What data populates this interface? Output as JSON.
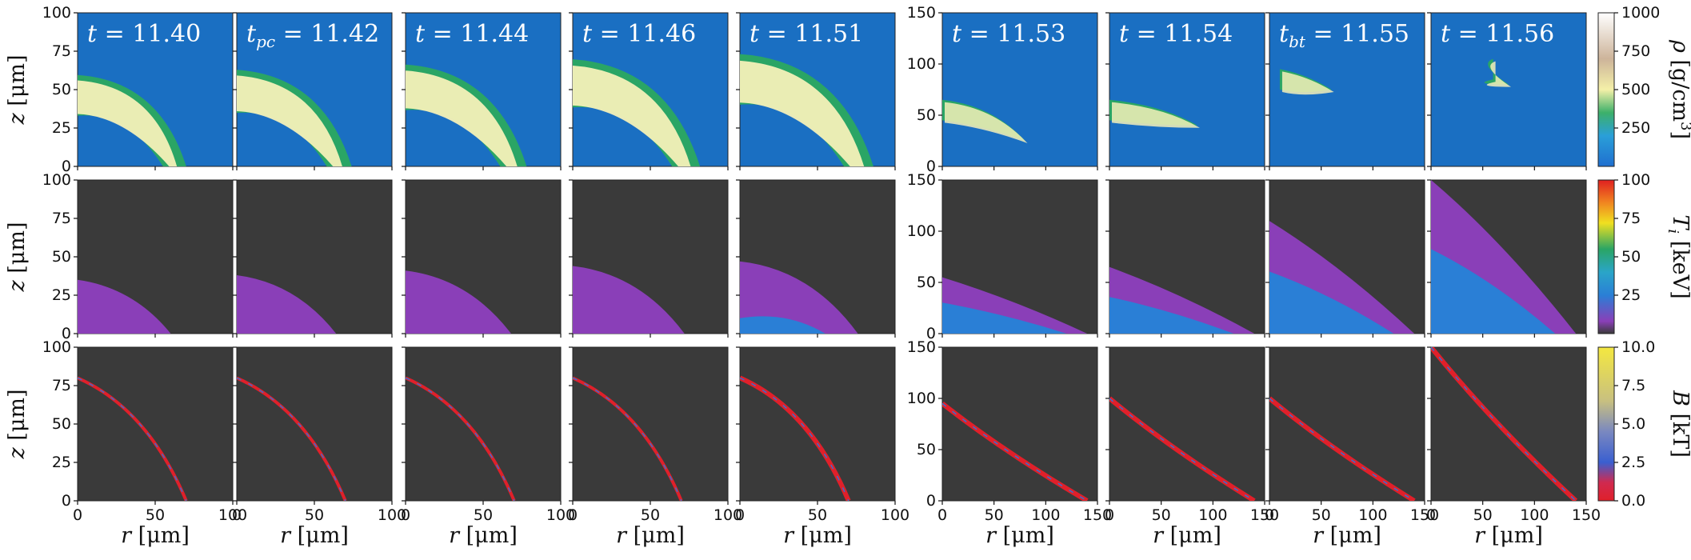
{
  "figure": {
    "time_labels": [
      {
        "prefix": "t",
        "sub": "",
        "value": " = 11.40"
      },
      {
        "prefix": "t",
        "sub": "pc",
        "value": " = 11.42"
      },
      {
        "prefix": "t",
        "sub": "",
        "value": " = 11.44"
      },
      {
        "prefix": "t",
        "sub": "",
        "value": " = 11.46"
      },
      {
        "prefix": "t",
        "sub": "",
        "value": " = 11.51"
      },
      {
        "prefix": "t",
        "sub": "",
        "value": " = 11.53"
      },
      {
        "prefix": "t",
        "sub": "",
        "value": " = 11.54"
      },
      {
        "prefix": "t",
        "sub": "bt",
        "value": " = 11.55"
      },
      {
        "prefix": "t",
        "sub": "",
        "value": " = 11.56"
      }
    ],
    "x_label_var": "r",
    "x_label_unit": " [μm]",
    "y_label_var": "z",
    "y_label_unit": " [μm]",
    "x_ticks_small": [
      "0",
      "50",
      "100"
    ],
    "x_ticks_large": [
      "0",
      "50",
      "100",
      "150"
    ],
    "y_ticks_small": [
      "0",
      "25",
      "50",
      "75",
      "100"
    ],
    "y_ticks_large": [
      "0",
      "50",
      "100",
      "150"
    ],
    "colorbars": [
      {
        "var": "ρ",
        "unit": " [g/cm",
        "sup": "3",
        "close": "]",
        "ticks": [
          "250",
          "500",
          "750",
          "1000"
        ]
      },
      {
        "var": "T",
        "sub": "i",
        "unit": " [keV]",
        "ticks": [
          "25",
          "50",
          "75",
          "100"
        ]
      },
      {
        "var": "B",
        "unit": " [kT]",
        "ticks": [
          "0.0",
          "2.5",
          "5.0",
          "7.5",
          "10.0"
        ]
      }
    ],
    "colors": {
      "density_bg": "#1a6fc2",
      "dark_bg": "#3a3a3a",
      "shell_light": "#f4f0b8",
      "shell_green": "#2aa565",
      "ti_purple": "#8a3fb8",
      "ti_blue": "#2a7fd6",
      "b_red": "#e0202a",
      "b_blue": "#3a6fd0"
    }
  },
  "chart_data": {
    "type": "heatmap",
    "title": "",
    "rows": [
      "density",
      "ion temperature",
      "magnetic field"
    ],
    "times": [
      11.4,
      11.42,
      11.44,
      11.46,
      11.51,
      11.53,
      11.54,
      11.55,
      11.56
    ],
    "x_range_small": [
      0,
      100
    ],
    "x_range_large": [
      0,
      150
    ],
    "y_range_small": [
      0,
      100
    ],
    "y_range_large": [
      0,
      150
    ],
    "colorbar_ranges": {
      "density": [
        0,
        1000
      ],
      "ion_temperature": [
        0,
        100
      ],
      "magnetic_field": [
        0,
        10
      ]
    }
  }
}
